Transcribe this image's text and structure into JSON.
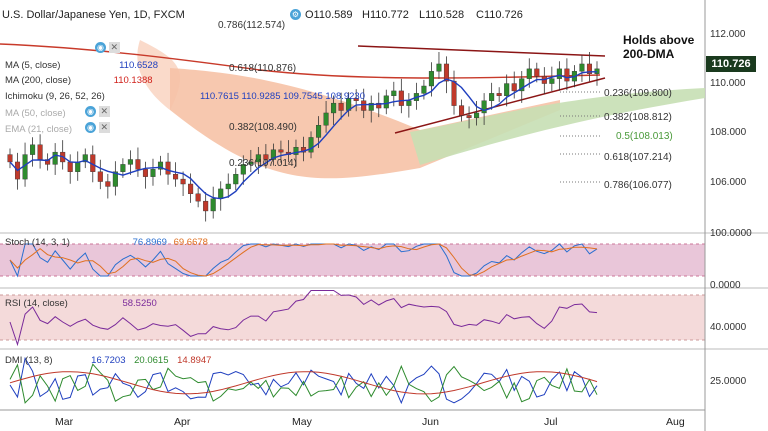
{
  "header": {
    "title": "U.S. Dollar/Japanese Yen, 1D, FXCM",
    "open": "O110.589",
    "high": "H110.772",
    "low": "L110.528",
    "close": "C110.726"
  },
  "indicators": [
    {
      "label": "MA (5, close)",
      "value": "110.6528",
      "color": "#1f3fbf"
    },
    {
      "label": "MA (200, close)",
      "value": "110.1388",
      "color": "#d0201a"
    },
    {
      "label": "Ichimoku (9, 26, 52, 26)",
      "value": "110.7615 110.9285 109.7545 108.9230",
      "color": "#333333"
    },
    {
      "label": "MA (50, close)",
      "value": "",
      "color": "#999999"
    },
    {
      "label": "EMA (21, close)",
      "value": "",
      "color": "#999999"
    }
  ],
  "annotation": "Holds above\n200-DMA",
  "current_price": "110.726",
  "fib_levels": [
    {
      "label": "0.786(112.574)",
      "value": 112.574
    },
    {
      "label": "0.618(110.876)",
      "value": 110.876
    },
    {
      "label": "0.382(108.490)",
      "value": 108.49
    },
    {
      "label": "0.236(107.014)",
      "value": 107.014
    },
    {
      "label": "0.236(109.800)",
      "value": 109.8
    },
    {
      "label": "0.382(108.812)",
      "value": 108.812
    },
    {
      "label": "0.5(108.013)",
      "value": 108.013
    },
    {
      "label": "0.618(107.214)",
      "value": 107.214
    },
    {
      "label": "0.786(106.077)",
      "value": 106.077
    }
  ],
  "stoch_panel": {
    "label": "Stoch (14, 3, 1)",
    "k": "76.8969",
    "d": "69.6678",
    "axis": [
      "100.0000",
      "0.0000"
    ]
  },
  "rsi_panel": {
    "label": "RSI (14, close)",
    "value": "58.5250",
    "axis": [
      "40.0000"
    ]
  },
  "dmi_panel": {
    "label": "DMI (13, 8)",
    "plus": "16.7203",
    "minus": "20.0615",
    "adx": "14.8947",
    "axis": [
      "25.0000"
    ]
  },
  "colors": {
    "bull": "#2e8b2e",
    "bear": "#c0392b",
    "ma5": "#1f3fbf",
    "ma200": "#c83a2a",
    "cloud_bear": "#f6c2a6",
    "cloud_bull": "#c7dfb4"
  },
  "chart_data": {
    "type": "line",
    "x_labels": [
      "Mar",
      "Apr",
      "May",
      "Jun",
      "Jul",
      "Aug"
    ],
    "y_ticks": [
      "112.000",
      "110.000",
      "108.000",
      "106.000"
    ],
    "close": [
      106.9,
      106.2,
      107.2,
      107.6,
      107.0,
      106.8,
      107.3,
      106.9,
      106.5,
      106.9,
      107.2,
      106.5,
      106.1,
      105.9,
      106.5,
      106.8,
      107.0,
      106.6,
      106.3,
      106.6,
      106.9,
      106.4,
      106.2,
      106.0,
      105.6,
      105.3,
      104.9,
      105.4,
      105.8,
      106.0,
      106.4,
      106.8,
      106.9,
      107.2,
      107.0,
      107.4,
      107.3,
      107.2,
      107.5,
      107.3,
      107.9,
      108.4,
      108.9,
      109.3,
      109.0,
      109.5,
      109.4,
      109.0,
      109.3,
      109.1,
      109.6,
      109.8,
      109.2,
      109.4,
      109.7,
      110.0,
      110.6,
      110.9,
      110.2,
      109.2,
      108.8,
      108.7,
      108.9,
      109.4,
      109.7,
      109.6,
      110.1,
      109.8,
      110.3,
      110.7,
      110.4,
      110.1,
      110.3,
      110.7,
      110.2,
      110.6,
      110.9,
      110.5,
      110.7
    ]
  }
}
